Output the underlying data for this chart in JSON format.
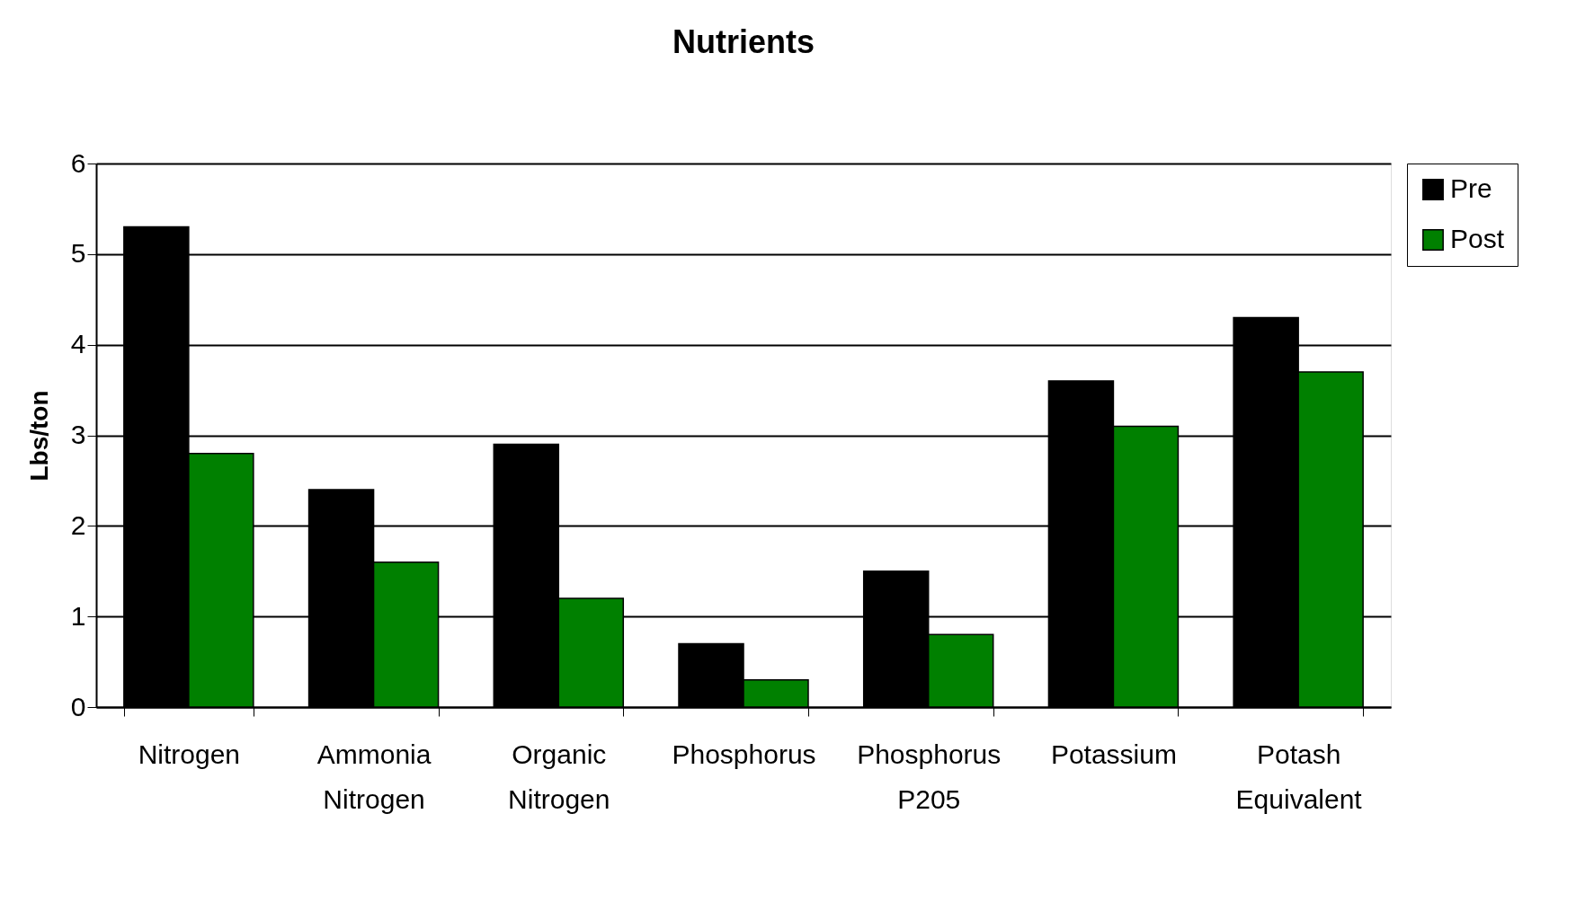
{
  "chart_data": {
    "type": "bar",
    "title": "Nutrients",
    "ylabel": "Lbs/ton",
    "categories": [
      "Nitrogen",
      "Ammonia Nitrogen",
      "Organic Nitrogen",
      "Phosphorus",
      "Phosphorus P205",
      "Potassium",
      "Potash Equivalent"
    ],
    "series": [
      {
        "name": "Pre",
        "color": "#000000",
        "values": [
          5.3,
          2.4,
          2.9,
          0.7,
          1.5,
          3.6,
          4.3
        ]
      },
      {
        "name": "Post",
        "color": "#008000",
        "values": [
          2.8,
          1.6,
          1.2,
          0.3,
          0.8,
          3.1,
          3.7
        ]
      }
    ],
    "ylim": [
      0,
      6
    ],
    "yticks": [
      0,
      1,
      2,
      3,
      4,
      5,
      6
    ],
    "grid": "y",
    "legend": "right"
  }
}
